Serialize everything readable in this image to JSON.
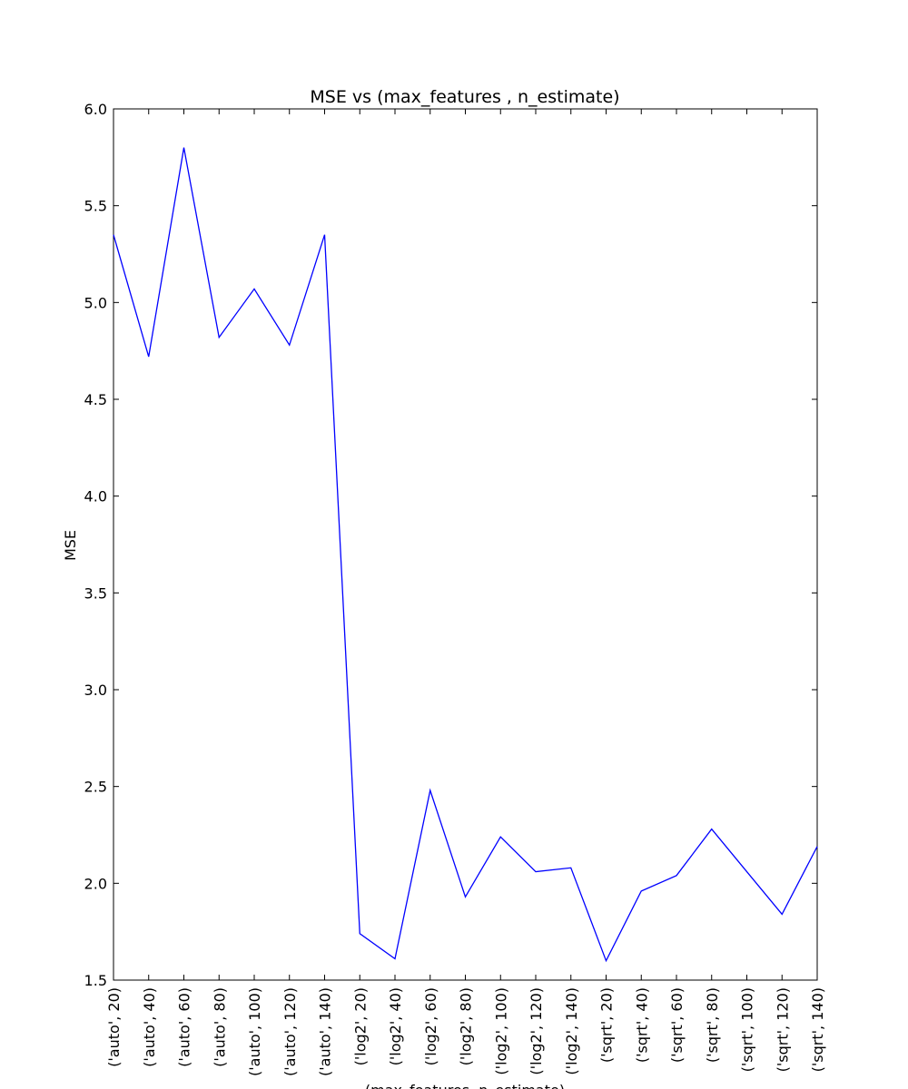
{
  "chart_data": {
    "type": "line",
    "title": "MSE vs (max_features , n_estimate)",
    "xlabel": "(max_features, n_estimate)",
    "ylabel": "MSE",
    "ylim": [
      1.5,
      6.0
    ],
    "y_ticks": [
      "1.5",
      "2.0",
      "2.5",
      "3.0",
      "3.5",
      "4.0",
      "4.5",
      "5.0",
      "5.5",
      "6.0"
    ],
    "grid": false,
    "line_color": "#0000ff",
    "categories": [
      "('auto', 20)",
      "('auto', 40)",
      "('auto', 60)",
      "('auto', 80)",
      "('auto', 100)",
      "('auto', 120)",
      "('auto', 140)",
      "('log2', 20)",
      "('log2', 40)",
      "('log2', 60)",
      "('log2', 80)",
      "('log2', 100)",
      "('log2', 120)",
      "('log2', 140)",
      "('sqrt', 20)",
      "('sqrt', 40)",
      "('sqrt', 60)",
      "('sqrt', 80)",
      "('sqrt', 100)",
      "('sqrt', 120)",
      "('sqrt', 140)"
    ],
    "values": [
      5.35,
      4.72,
      5.8,
      4.82,
      5.07,
      4.78,
      5.35,
      1.74,
      1.61,
      2.48,
      1.93,
      2.24,
      2.06,
      2.08,
      1.6,
      1.96,
      2.04,
      2.28,
      2.06,
      1.84,
      2.19
    ]
  }
}
